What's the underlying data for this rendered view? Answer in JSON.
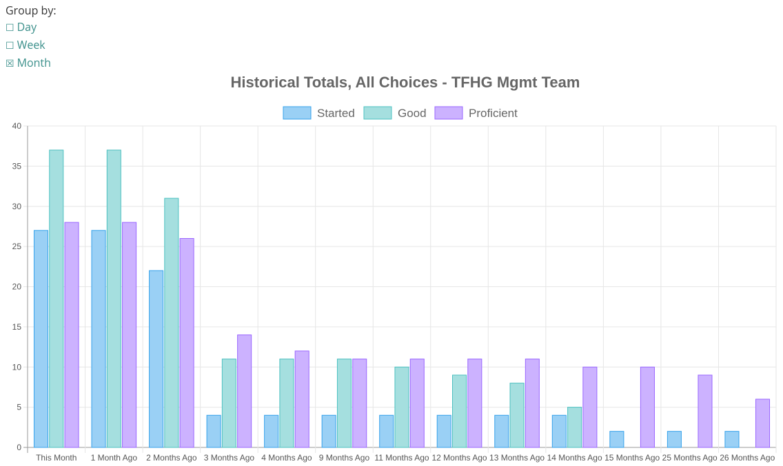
{
  "group_by": {
    "label": "Group by:",
    "options": [
      {
        "box": "☐",
        "label": "Day",
        "checked": false
      },
      {
        "box": "☐",
        "label": "Week",
        "checked": false
      },
      {
        "box": "☒",
        "label": "Month",
        "checked": true
      }
    ]
  },
  "colors": {
    "started_fill": "#9ad0f5",
    "started_stroke": "#36a2eb",
    "good_fill": "#a5dfdf",
    "good_stroke": "#4bc0c0",
    "proficient_fill": "#ccb2ff",
    "proficient_stroke": "#9966ff",
    "grid": "#e6e6e6",
    "axis": "#999999"
  },
  "chart_data": {
    "type": "bar",
    "title": "Historical Totals, All Choices - TFHG Mgmt Team",
    "categories": [
      "This Month",
      "1 Month Ago",
      "2 Months Ago",
      "3 Months Ago",
      "4 Months Ago",
      "9 Months Ago",
      "11 Months Ago",
      "12 Months Ago",
      "13 Months Ago",
      "14 Months Ago",
      "15 Months Ago",
      "25 Months Ago",
      "26 Months Ago"
    ],
    "series": [
      {
        "name": "Started",
        "values": [
          27,
          27,
          22,
          4,
          4,
          4,
          4,
          4,
          4,
          4,
          2,
          2,
          2
        ]
      },
      {
        "name": "Good",
        "values": [
          37,
          37,
          31,
          11,
          11,
          11,
          10,
          9,
          8,
          5,
          0,
          0,
          0
        ]
      },
      {
        "name": "Proficient",
        "values": [
          28,
          28,
          26,
          14,
          12,
          11,
          11,
          11,
          11,
          10,
          10,
          9,
          6
        ]
      }
    ],
    "ylim": [
      0,
      40
    ],
    "yticks": [
      0,
      5,
      10,
      15,
      20,
      25,
      30,
      35,
      40
    ],
    "grid": true,
    "legend": "top"
  }
}
